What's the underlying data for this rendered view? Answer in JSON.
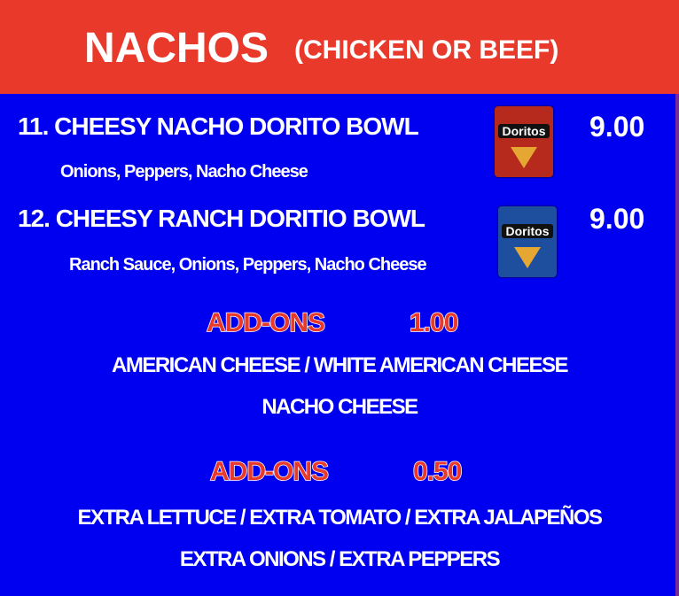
{
  "header": {
    "title": "NACHOS",
    "subtitle": "(CHICKEN OR BEEF)"
  },
  "items": [
    {
      "name": "11. CHEESY NACHO DORITO BOWL",
      "description": "Onions, Peppers, Nacho Cheese",
      "price": "9.00",
      "image": {
        "brand": "Doritos",
        "color": "#b52a1c"
      }
    },
    {
      "name": "12. CHEESY RANCH DORITIO BOWL",
      "description": "Ranch Sauce, Onions, Peppers, Nacho Cheese",
      "price": "9.00",
      "image": {
        "brand": "Doritos",
        "color": "#1d4f9e"
      }
    }
  ],
  "addons": [
    {
      "label": "ADD-ONS",
      "price": "1.00",
      "lines": [
        "AMERICAN CHEESE  /  WHITE AMERICAN CHEESE",
        "NACHO CHEESE"
      ]
    },
    {
      "label": "ADD-ONS",
      "price": "0.50",
      "lines": [
        "EXTRA LETTUCE / EXTRA TOMATO / EXTRA JALAPEÑOS",
        "EXTRA ONIONS / EXTRA PEPPERS"
      ]
    }
  ],
  "colors": {
    "header": "#e8392b",
    "background": "#0000f0",
    "accent": "#e8392b"
  }
}
